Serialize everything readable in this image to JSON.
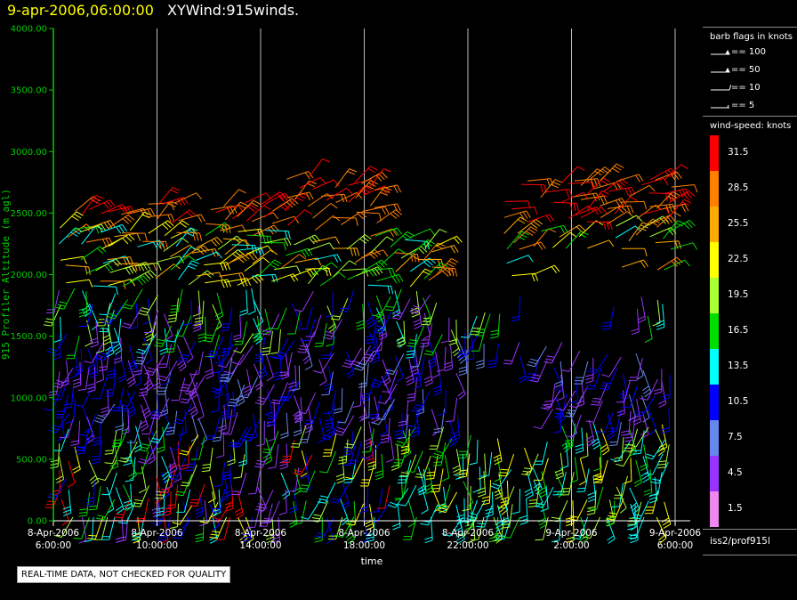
{
  "header": {
    "time": "9-apr-2006,06:00:00",
    "title": "XYWind:915winds."
  },
  "chart_data": {
    "type": "scatter",
    "ylabel": "915 Profiler Altitude (m agl)",
    "xlabel": "time",
    "ylim": [
      0,
      4000
    ],
    "yticks": [
      "0.00",
      "500.00",
      "1000.00",
      "1500.00",
      "2000.00",
      "2500.00",
      "3000.00",
      "3500.00",
      "4000.00"
    ],
    "xticks": [
      {
        "date": "8-Apr-2006",
        "time": "6:00:00"
      },
      {
        "date": "8-Apr-2006",
        "time": "10:00:00"
      },
      {
        "date": "8-Apr-2006",
        "time": "14:00:00"
      },
      {
        "date": "8-Apr-2006",
        "time": "18:00:00"
      },
      {
        "date": "8-Apr-2006",
        "time": "22:00:00"
      },
      {
        "date": "9-Apr-2006",
        "time": "2:00:00"
      },
      {
        "date": "9-Apr-2006",
        "time": "6:00:00"
      }
    ],
    "grid": "vertical",
    "colors": {
      "axis": "#00cc00",
      "grid": "#bbbbbb",
      "tick_labels": "#00cc00"
    }
  },
  "legend": {
    "barb_title": "barb flags in knots",
    "barbs": [
      {
        "label": "== 100",
        "kind": "flag100"
      },
      {
        "label": "== 50",
        "kind": "flag50"
      },
      {
        "label": "== 10",
        "kind": "barb10"
      },
      {
        "label": "== 5",
        "kind": "barb5"
      }
    ],
    "speed_title": "wind-speed: knots",
    "speed_bins": [
      {
        "label": "31.5",
        "color": "#ff0000"
      },
      {
        "label": "28.5",
        "color": "#ff8000"
      },
      {
        "label": "25.5",
        "color": "#ffaa00"
      },
      {
        "label": "22.5",
        "color": "#ffff00"
      },
      {
        "label": "19.5",
        "color": "#aaff33"
      },
      {
        "label": "16.5",
        "color": "#00dd00"
      },
      {
        "label": "13.5",
        "color": "#00ffff"
      },
      {
        "label": "10.5",
        "color": "#0000ff"
      },
      {
        "label": "7.5",
        "color": "#6688ee"
      },
      {
        "label": "4.5",
        "color": "#9933ff"
      },
      {
        "label": "1.5",
        "color": "#ee88ee"
      }
    ],
    "source": "iss2/prof915l"
  },
  "footer": {
    "note": "REAL-TIME DATA, NOT CHECKED FOR QUALITY"
  }
}
